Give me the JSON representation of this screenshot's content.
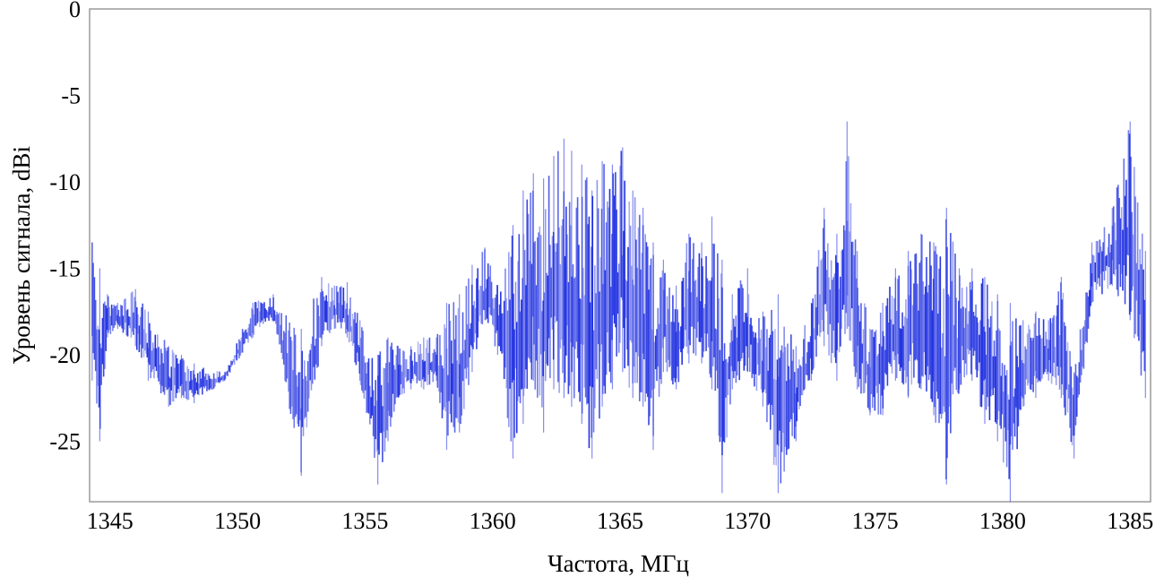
{
  "chart_data": {
    "type": "line",
    "title": "",
    "xlabel": "Частота, МГц",
    "ylabel": "Уровень сигнала, dBi",
    "xlim": [
      1344.2,
      1385.8
    ],
    "ylim": [
      -28.5,
      0
    ],
    "xticks": [
      1345,
      1350,
      1355,
      1360,
      1365,
      1370,
      1375,
      1380,
      1385
    ],
    "yticks": [
      0,
      -5,
      -10,
      -15,
      -20,
      -25
    ],
    "xtick_labels": [
      "1345",
      "1350",
      "1355",
      "1360",
      "1365",
      "1370",
      "1375",
      "1380",
      "1385"
    ],
    "ytick_labels": [
      "0",
      "-5",
      "-10",
      "-15",
      "-20",
      "-25"
    ],
    "grid": false,
    "series_color": "#1f2fe0",
    "series": [
      {
        "x": [
          1344.3,
          1344.6,
          1344.9,
          1345.3,
          1346.0,
          1346.5,
          1347.3,
          1347.8,
          1348.3,
          1349.5,
          1350.6,
          1351.4,
          1352.5,
          1353.3,
          1353.8,
          1354.3,
          1354.8,
          1355.5,
          1355.9,
          1356.3,
          1356.8,
          1357.3,
          1357.8,
          1358.2,
          1358.7,
          1359.2,
          1359.7,
          1360.2,
          1360.8,
          1361.2,
          1361.6,
          1362.0,
          1362.4,
          1362.8,
          1363.1,
          1363.5,
          1363.9,
          1364.3,
          1364.7,
          1365.1,
          1365.5,
          1365.9,
          1366.3,
          1366.7,
          1367.2,
          1367.7,
          1368.2,
          1368.6,
          1369.0,
          1369.4,
          1370.0,
          1370.6,
          1371.2,
          1371.9,
          1372.5,
          1373.0,
          1373.5,
          1373.9,
          1374.3,
          1374.8,
          1375.3,
          1375.8,
          1376.3,
          1376.8,
          1377.3,
          1377.8,
          1378.3,
          1378.8,
          1379.3,
          1379.8,
          1380.3,
          1380.8,
          1381.3,
          1381.8,
          1382.3,
          1382.8,
          1383.5,
          1384.3,
          1385.0,
          1385.6
        ],
        "y_max": [
          -13.5,
          -15.0,
          -16.5,
          -17.0,
          -16.2,
          -17.5,
          -19.5,
          -20.0,
          -20.5,
          -21.0,
          -17.0,
          -16.5,
          -18.5,
          -15.5,
          -16.0,
          -15.8,
          -18.0,
          -20.0,
          -19.0,
          -19.5,
          -19.5,
          -19.0,
          -19.0,
          -17.0,
          -16.5,
          -14.8,
          -13.8,
          -16.0,
          -12.5,
          -10.5,
          -9.5,
          -9.8,
          -8.5,
          -7.5,
          -8.2,
          -9.0,
          -10.5,
          -8.8,
          -9.0,
          -8.0,
          -10.5,
          -11.5,
          -13.5,
          -14.5,
          -16.0,
          -13.0,
          -13.5,
          -12.0,
          -14.5,
          -16.5,
          -15.0,
          -17.5,
          -16.5,
          -19.5,
          -17.0,
          -11.5,
          -13.0,
          -6.5,
          -14.0,
          -18.5,
          -17.0,
          -15.0,
          -14.0,
          -13.0,
          -13.5,
          -11.5,
          -15.0,
          -15.0,
          -15.5,
          -16.5,
          -17.0,
          -18.0,
          -17.5,
          -18.0,
          -15.5,
          -21.0,
          -13.5,
          -11.5,
          -6.5,
          -14.0
        ],
        "y_min": [
          -21.5,
          -25.0,
          -19.0,
          -18.5,
          -19.5,
          -21.5,
          -23.0,
          -22.5,
          -22.8,
          -21.5,
          -19.0,
          -18.0,
          -27.0,
          -19.5,
          -18.5,
          -19.0,
          -21.5,
          -27.5,
          -25.0,
          -22.5,
          -22.0,
          -22.0,
          -21.5,
          -25.5,
          -24.5,
          -21.0,
          -18.0,
          -20.0,
          -26.0,
          -24.0,
          -21.5,
          -24.5,
          -22.0,
          -22.5,
          -23.0,
          -24.0,
          -26.0,
          -23.0,
          -22.0,
          -21.0,
          -22.5,
          -23.0,
          -25.5,
          -21.0,
          -22.0,
          -20.5,
          -20.5,
          -22.0,
          -28.0,
          -22.0,
          -21.0,
          -23.0,
          -28.0,
          -25.0,
          -21.5,
          -19.5,
          -21.5,
          -18.5,
          -22.0,
          -23.5,
          -23.5,
          -21.5,
          -22.5,
          -22.0,
          -23.5,
          -27.5,
          -22.0,
          -21.5,
          -24.0,
          -25.0,
          -28.5,
          -23.0,
          -22.5,
          -21.5,
          -22.5,
          -26.0,
          -17.0,
          -16.0,
          -18.0,
          -22.5
        ]
      }
    ]
  }
}
